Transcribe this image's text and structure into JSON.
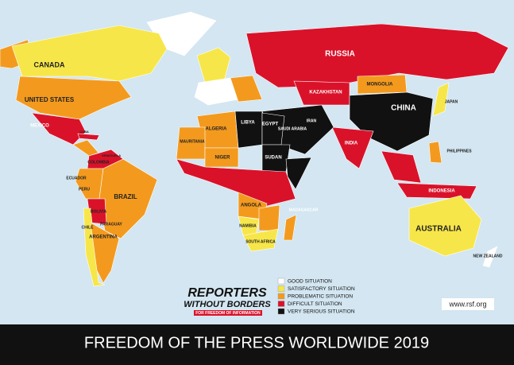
{
  "title": "FREEDOM OF THE PRESS WORLDWIDE 2019",
  "logo": {
    "line1": "REPORTERS",
    "line2": "WITHOUT BORDERS",
    "tagline": "FOR FREEDOM OF INFORMATION"
  },
  "url": "www.rsf.org",
  "legend": [
    {
      "label": "GOOD SITUATION",
      "color": "#ffffff"
    },
    {
      "label": "SATISFACTORY SITUATION",
      "color": "#f7e64a"
    },
    {
      "label": "PROBLEMATIC SITUATION",
      "color": "#f39a1e"
    },
    {
      "label": "DIFFICULT SITUATION",
      "color": "#d9122a"
    },
    {
      "label": "VERY SERIOUS SITUATION",
      "color": "#111111"
    }
  ],
  "countries": [
    "CANADA",
    "UNITED STATES",
    "MEXICO",
    "CUBA",
    "COLOMBIA",
    "VENEZUELA",
    "ECUADOR",
    "PERU",
    "BRAZIL",
    "BOLIVIA",
    "PARAGUAY",
    "CHILE",
    "ARGENTINA",
    "RUSSIA",
    "KAZAKHSTAN",
    "MONGOLIA",
    "CHINA",
    "JAPAN",
    "INDIA",
    "IRAN",
    "SAUDI ARABIA",
    "LIBYA",
    "EGYPT",
    "SUDAN",
    "ALGERIA",
    "MAURITANIA",
    "NIGER",
    "ANGOLA",
    "NAMIBIA",
    "SOUTH AFRICA",
    "MADAGASCAR",
    "INDONESIA",
    "PHILIPPINES",
    "AUSTRALIA",
    "NEW ZEALAND"
  ]
}
